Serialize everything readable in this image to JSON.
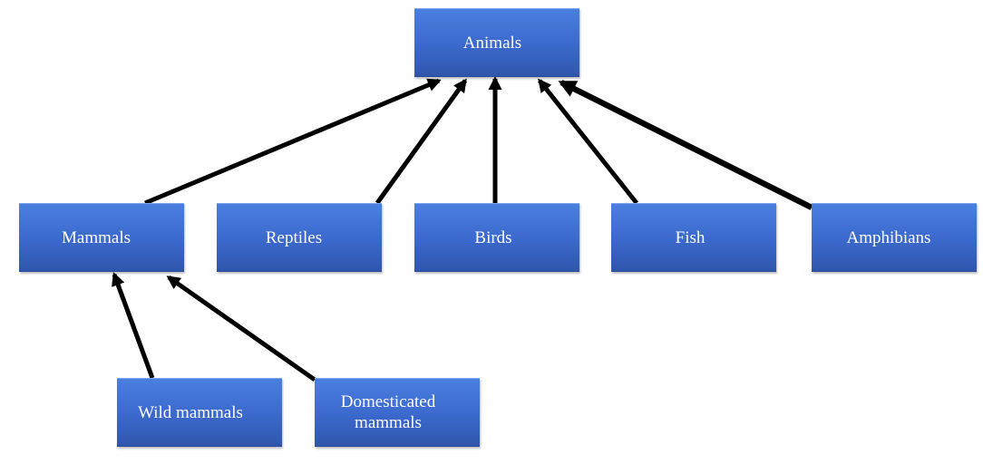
{
  "diagram": {
    "nodes": [
      {
        "id": "animals",
        "label": "Animals"
      },
      {
        "id": "mammals",
        "label": "Mammals"
      },
      {
        "id": "reptiles",
        "label": "Reptiles"
      },
      {
        "id": "birds",
        "label": "Birds"
      },
      {
        "id": "fish",
        "label": "Fish"
      },
      {
        "id": "amphibians",
        "label": "Amphibians"
      },
      {
        "id": "wild",
        "label": "Wild mammals"
      },
      {
        "id": "domestic",
        "label": "Domesticated mammals"
      }
    ],
    "edges": [
      {
        "from": "mammals",
        "to": "animals"
      },
      {
        "from": "reptiles",
        "to": "animals"
      },
      {
        "from": "birds",
        "to": "animals"
      },
      {
        "from": "fish",
        "to": "animals"
      },
      {
        "from": "amphibians",
        "to": "animals"
      },
      {
        "from": "wild",
        "to": "mammals"
      },
      {
        "from": "domestic",
        "to": "mammals"
      }
    ],
    "colors": {
      "node_fill": "#3b68cc",
      "node_text": "#ffffff",
      "arrow": "#000000"
    }
  }
}
